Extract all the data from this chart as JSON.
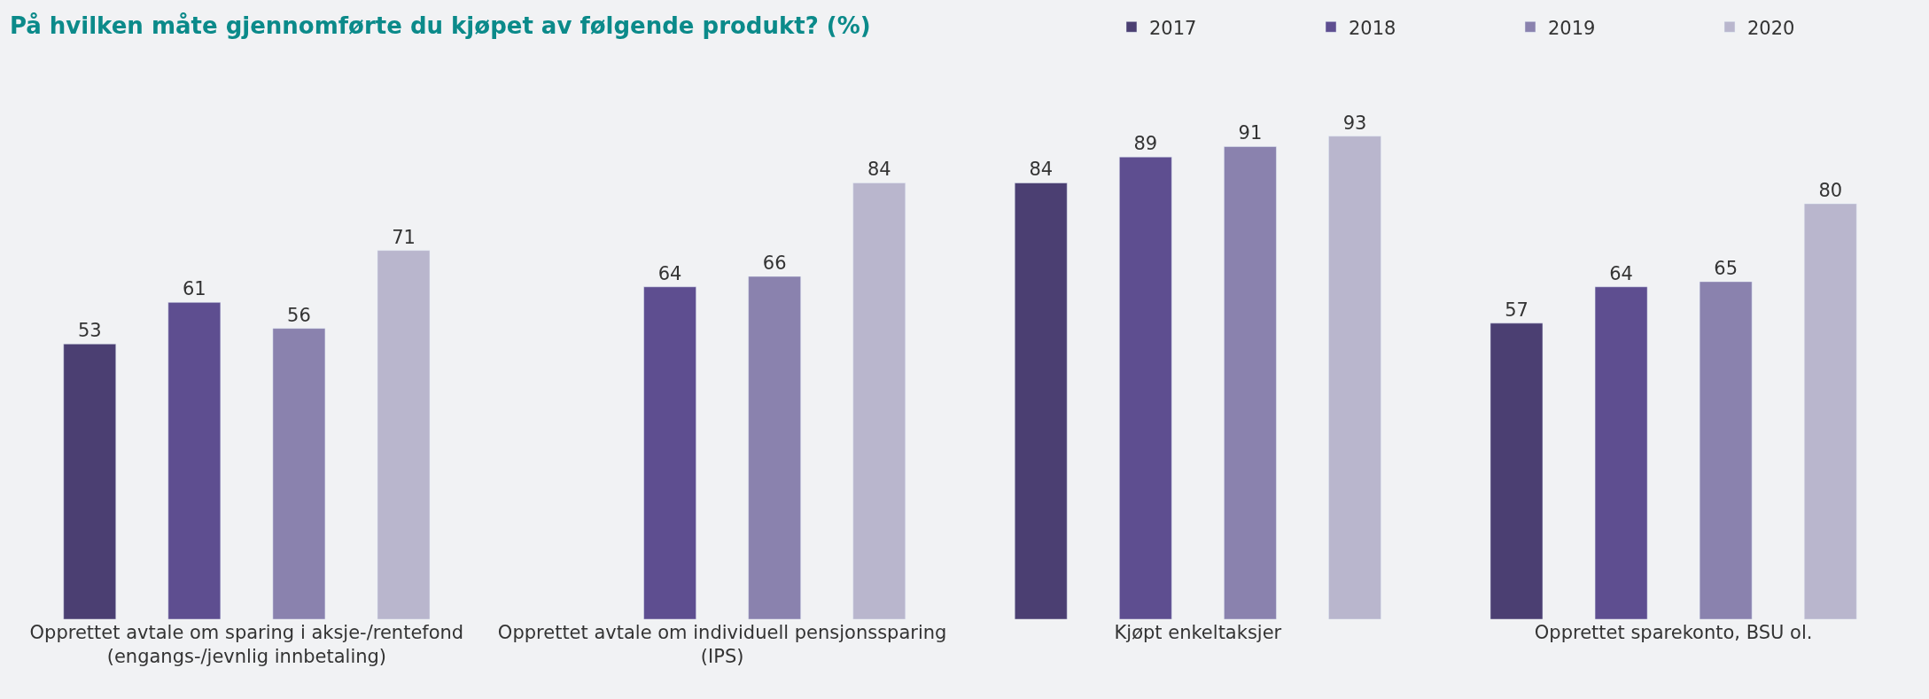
{
  "chart_data": {
    "type": "bar",
    "title": "På hvilken måte gjennomførte du kjøpet av følgende produkt? (%)",
    "categories": [
      "Opprettet avtale om sparing i aksje-/rentefond (engangs-/jevnlig innbetaling)",
      "Opprettet avtale om individuell pensjonssparing (IPS)",
      "Kjøpt enkeltaksjer",
      "Opprettet sparekonto, BSU ol."
    ],
    "series": [
      {
        "name": "2017",
        "color": "#4b3f72",
        "values": [
          53,
          null,
          84,
          57
        ]
      },
      {
        "name": "2018",
        "color": "#5e4e90",
        "values": [
          61,
          64,
          89,
          64
        ]
      },
      {
        "name": "2019",
        "color": "#8a82ae",
        "values": [
          56,
          66,
          91,
          65
        ]
      },
      {
        "name": "2020",
        "color": "#b9b6cd",
        "values": [
          71,
          84,
          93,
          80
        ]
      }
    ],
    "data_labels": true,
    "legend": "top right",
    "grid": false
  }
}
